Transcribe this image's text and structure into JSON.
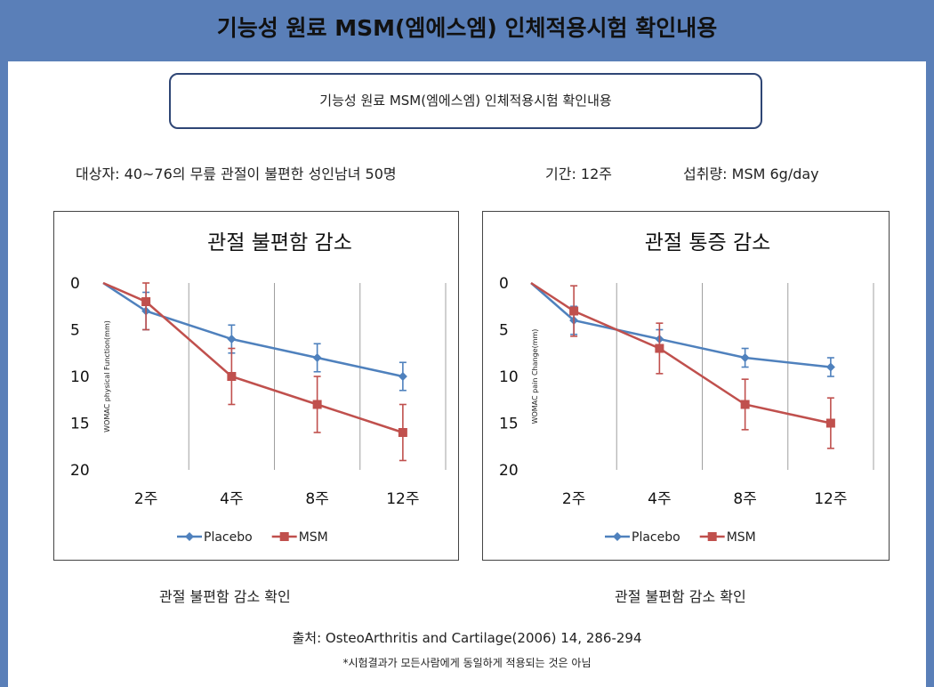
{
  "header": {
    "title": "기능성 원료 MSM(엠에스엠) 인체적용시험 확인내용"
  },
  "subtitle": "기능성 원료 MSM(엠에스엠) 인체적용시험 확인내용",
  "info": {
    "subjects": "대상자: 40~76의 무릎 관절이 불편한 성인남녀 50명",
    "duration": "기간: 12주",
    "intake": "섭취량: MSM 6g/day"
  },
  "colors": {
    "placebo": "#4f81bd",
    "msm": "#c0504d",
    "header_bg": "#5a7fb8"
  },
  "chart_data": [
    {
      "type": "line",
      "title": "관절 불편함 감소",
      "ylabel": "WOMAC physical Function(mm)",
      "xlabel": "",
      "categories": [
        "2주",
        "4주",
        "8주",
        "12주"
      ],
      "ylim": [
        0,
        20
      ],
      "yticks": [
        0,
        5,
        10,
        15,
        20
      ],
      "y_inverted": true,
      "grid": "vertical",
      "legend": "bottom",
      "baseline": 0,
      "series": [
        {
          "name": "Placebo",
          "values": [
            3,
            6,
            8,
            10
          ],
          "errors": [
            2,
            1.5,
            1.5,
            1.5
          ],
          "marker": "diamond"
        },
        {
          "name": "MSM",
          "values": [
            2,
            10,
            13,
            16
          ],
          "errors": [
            3,
            3,
            3,
            3
          ],
          "marker": "square"
        }
      ],
      "caption": "관절 불편함 감소 확인"
    },
    {
      "type": "line",
      "title": "관절 통증 감소",
      "ylabel": "WOMAC pain Change(mm)",
      "xlabel": "",
      "categories": [
        "2주",
        "4주",
        "8주",
        "12주"
      ],
      "ylim": [
        0,
        20
      ],
      "yticks": [
        0,
        5,
        10,
        15,
        20
      ],
      "y_inverted": true,
      "grid": "vertical",
      "legend": "bottom",
      "baseline": 0,
      "series": [
        {
          "name": "Placebo",
          "values": [
            4,
            6,
            8,
            9
          ],
          "errors": [
            1.5,
            1,
            1,
            1
          ],
          "marker": "diamond"
        },
        {
          "name": "MSM",
          "values": [
            3,
            7,
            13,
            15
          ],
          "errors": [
            2.7,
            2.7,
            2.7,
            2.7
          ],
          "marker": "square"
        }
      ],
      "caption": "관절 불편함 감소 확인"
    }
  ],
  "source": "출처: OsteoArthritis and Cartilage(2006) 14, 286-294",
  "note": "*시험결과가 모든사람에게 동일하게 적용되는 것은 아님"
}
